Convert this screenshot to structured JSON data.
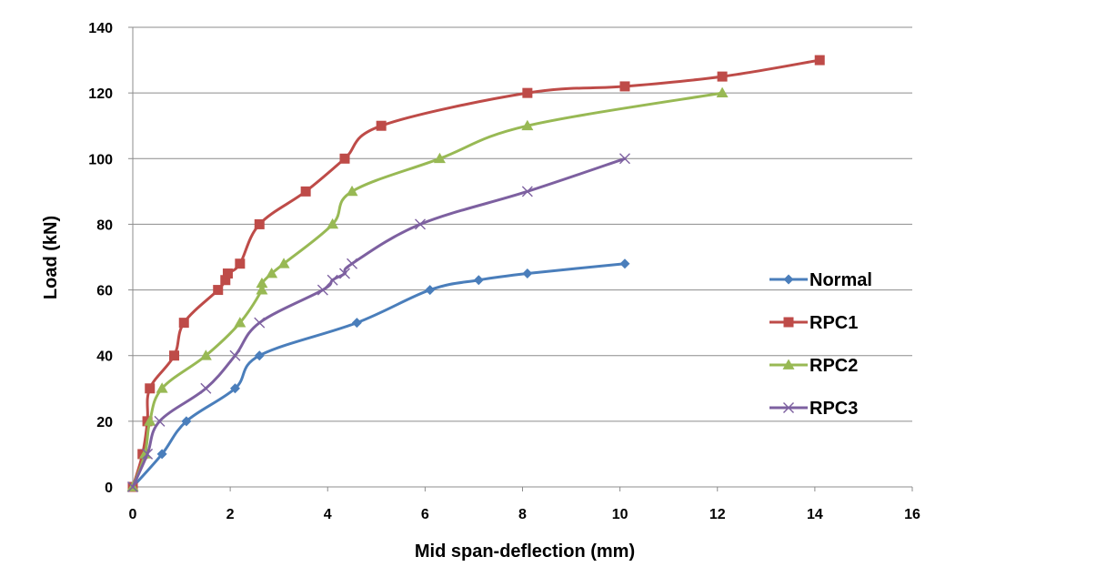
{
  "chart_data": {
    "type": "line",
    "title": "",
    "xlabel": "Mid span-deflection (mm)",
    "ylabel": "Load (kN)",
    "xlim": [
      0,
      16
    ],
    "ylim": [
      0,
      140
    ],
    "xticks": [
      0,
      2,
      4,
      6,
      8,
      10,
      12,
      14,
      16
    ],
    "yticks": [
      0,
      20,
      40,
      60,
      80,
      100,
      120,
      140
    ],
    "grid": "horizontal",
    "legend_position": "right",
    "series": [
      {
        "name": "Normal",
        "color": "#4a7ebb",
        "marker": "diamond",
        "x": [
          0,
          0.6,
          1.1,
          2.1,
          2.6,
          4.6,
          6.1,
          7.1,
          8.1,
          10.1
        ],
        "y": [
          0,
          10,
          20,
          30,
          40,
          50,
          60,
          63,
          65,
          68
        ]
      },
      {
        "name": "RPC1",
        "color": "#be4b48",
        "marker": "square",
        "x": [
          0,
          0.2,
          0.3,
          0.35,
          0.85,
          1.05,
          1.75,
          1.9,
          1.95,
          2.2,
          2.6,
          3.55,
          4.35,
          5.1,
          8.1,
          10.1,
          12.1,
          14.1
        ],
        "y": [
          0,
          10,
          20,
          30,
          40,
          50,
          60,
          63,
          65,
          68,
          80,
          90,
          100,
          110,
          120,
          122,
          125,
          130
        ]
      },
      {
        "name": "RPC2",
        "color": "#98b954",
        "marker": "triangle",
        "x": [
          0,
          0.25,
          0.35,
          0.6,
          1.5,
          2.2,
          2.65,
          2.65,
          2.85,
          3.1,
          4.1,
          4.5,
          6.3,
          8.1,
          12.1
        ],
        "y": [
          0,
          10,
          20,
          30,
          40,
          50,
          60,
          62,
          65,
          68,
          80,
          90,
          100,
          110,
          120
        ]
      },
      {
        "name": "RPC3",
        "color": "#7d60a0",
        "marker": "x",
        "x": [
          0,
          0.3,
          0.55,
          1.5,
          2.1,
          2.6,
          3.9,
          4.1,
          4.35,
          4.5,
          5.9,
          8.1,
          10.1
        ],
        "y": [
          0,
          10,
          20,
          30,
          40,
          50,
          60,
          63,
          65,
          68,
          80,
          90,
          100
        ]
      }
    ]
  }
}
